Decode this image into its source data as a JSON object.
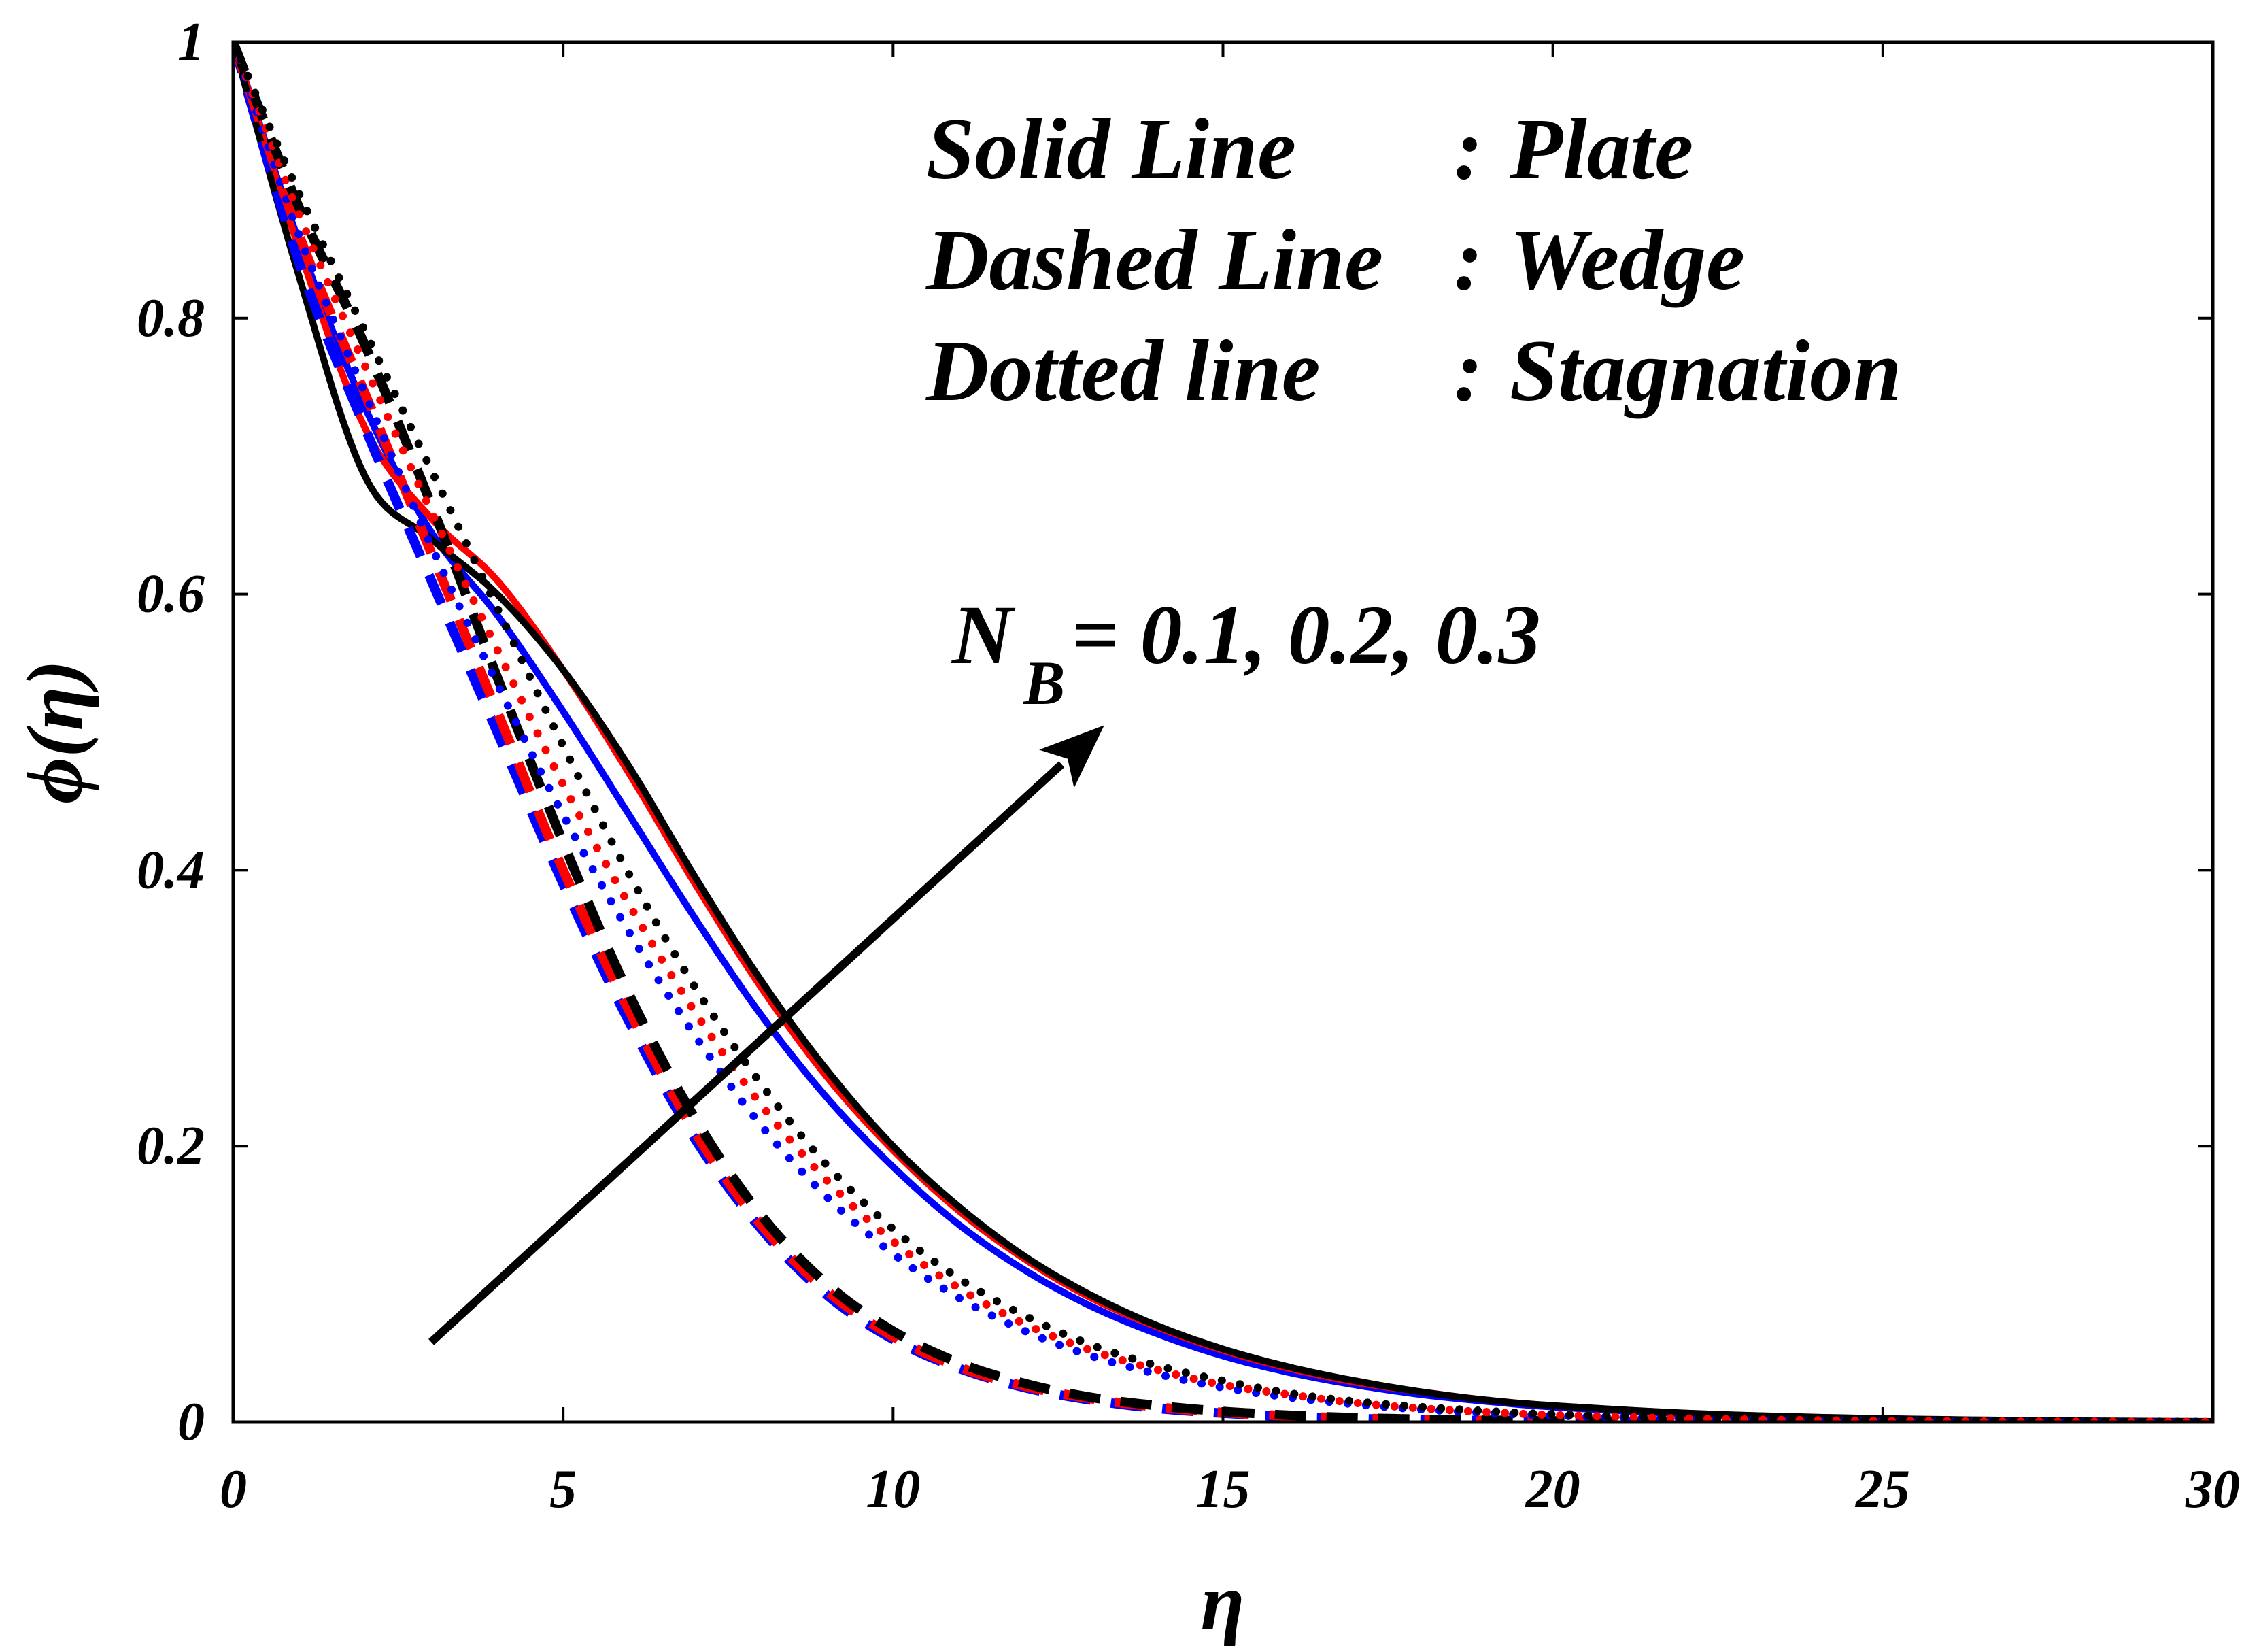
{
  "chart_data": {
    "type": "line",
    "title": "",
    "xlabel": "η",
    "ylabel": "ϕ(η)",
    "xlim": [
      0,
      30
    ],
    "ylim": [
      0,
      1
    ],
    "xticks": [
      0,
      5,
      10,
      15,
      20,
      25,
      30
    ],
    "yticks": [
      0,
      0.2,
      0.4,
      0.6,
      0.8,
      1
    ],
    "xtick_labels": [
      "0",
      "5",
      "10",
      "15",
      "20",
      "25",
      "30"
    ],
    "ytick_labels": [
      "0",
      "0.2",
      "0.4",
      "0.6",
      "0.8",
      "1"
    ],
    "grid": false,
    "legend_notes": [
      {
        "style": "Solid Line",
        "sep": ":",
        "geometry": "Plate"
      },
      {
        "style": "Dashed Line",
        "sep": ":",
        "geometry": "Wedge"
      },
      {
        "style": "Dotted line",
        "sep": ":",
        "geometry": "Stagnation"
      }
    ],
    "annotation": {
      "symbol": "N",
      "subscript": "B",
      "text": " = 0.1, 0.2, 0.3",
      "arrow_from": [
        3.0,
        0.058
      ],
      "arrow_to": [
        13.2,
        0.505
      ]
    },
    "colors": {
      "0.1": "#0000ff",
      "0.2": "#ff0000",
      "0.3": "#000000"
    },
    "series": [
      {
        "name": "Plate N_B=0.1",
        "geometry": "Plate",
        "N_B": 0.1,
        "style": "solid",
        "color": "#0000ff",
        "x": [
          0,
          1,
          2,
          3,
          4,
          5,
          6,
          7,
          8,
          9,
          10,
          11,
          12,
          13,
          14,
          15,
          16,
          17,
          18,
          19,
          20,
          22,
          24,
          26,
          28,
          30
        ],
        "y": [
          1.0,
          0.855,
          0.735,
          0.645,
          0.585,
          0.515,
          0.44,
          0.365,
          0.295,
          0.235,
          0.185,
          0.143,
          0.11,
          0.084,
          0.064,
          0.048,
          0.036,
          0.027,
          0.02,
          0.015,
          0.011,
          0.006,
          0.003,
          0.0015,
          0.0007,
          0.0003
        ]
      },
      {
        "name": "Plate N_B=0.2",
        "geometry": "Plate",
        "N_B": 0.2,
        "style": "solid",
        "color": "#ff0000",
        "x": [
          0,
          1,
          2,
          3,
          4,
          5,
          6,
          7,
          8,
          9,
          10,
          11,
          12,
          13,
          14,
          15,
          16,
          17,
          18,
          19,
          20,
          22,
          24,
          26,
          28,
          30
        ],
        "y": [
          1.0,
          0.85,
          0.72,
          0.655,
          0.61,
          0.545,
          0.47,
          0.39,
          0.315,
          0.25,
          0.197,
          0.153,
          0.118,
          0.09,
          0.069,
          0.052,
          0.039,
          0.029,
          0.022,
          0.016,
          0.012,
          0.0065,
          0.0035,
          0.0018,
          0.0009,
          0.0004
        ]
      },
      {
        "name": "Plate N_B=0.3",
        "geometry": "Plate",
        "N_B": 0.3,
        "style": "solid",
        "color": "#000000",
        "x": [
          0,
          1,
          2,
          3,
          4,
          5,
          6,
          7,
          8,
          9,
          10,
          11,
          12,
          13,
          14,
          15,
          16,
          17,
          18,
          19,
          20,
          22,
          24,
          26,
          28,
          30
        ],
        "y": [
          1.0,
          0.83,
          0.685,
          0.64,
          0.6,
          0.545,
          0.475,
          0.395,
          0.32,
          0.255,
          0.2,
          0.156,
          0.12,
          0.092,
          0.07,
          0.053,
          0.04,
          0.03,
          0.022,
          0.016,
          0.012,
          0.0066,
          0.0036,
          0.0019,
          0.001,
          0.0005
        ]
      },
      {
        "name": "Wedge N_B=0.1",
        "geometry": "Wedge",
        "N_B": 0.1,
        "style": "dashed",
        "color": "#0000ff",
        "x": [
          0,
          1,
          2,
          3,
          4,
          5,
          6,
          7,
          8,
          9,
          10,
          11,
          12,
          13,
          14,
          15,
          16,
          17,
          18,
          19,
          20,
          22,
          24
        ],
        "y": [
          1.0,
          0.84,
          0.72,
          0.61,
          0.5,
          0.39,
          0.29,
          0.205,
          0.14,
          0.092,
          0.06,
          0.039,
          0.025,
          0.016,
          0.01,
          0.0065,
          0.004,
          0.0026,
          0.0017,
          0.0011,
          0.0007,
          0.0003,
          0.0001
        ]
      },
      {
        "name": "Wedge N_B=0.2",
        "geometry": "Wedge",
        "N_B": 0.2,
        "style": "dashed",
        "color": "#ff0000",
        "x": [
          0,
          1,
          2,
          3,
          4,
          5,
          6,
          7,
          8,
          9,
          10,
          11,
          12,
          13,
          14,
          15,
          16,
          17,
          18,
          19,
          20,
          22,
          24
        ],
        "y": [
          1.0,
          0.86,
          0.745,
          0.63,
          0.515,
          0.4,
          0.298,
          0.21,
          0.143,
          0.095,
          0.062,
          0.04,
          0.026,
          0.017,
          0.011,
          0.007,
          0.0045,
          0.0029,
          0.0019,
          0.0012,
          0.0008,
          0.0003,
          0.0001
        ]
      },
      {
        "name": "Wedge N_B=0.3",
        "geometry": "Wedge",
        "N_B": 0.3,
        "style": "dashed",
        "color": "#000000",
        "x": [
          0,
          1,
          2,
          3,
          4,
          5,
          6,
          7,
          8,
          9,
          10,
          11,
          12,
          13,
          14,
          15,
          16,
          17,
          18,
          19,
          20,
          22,
          24
        ],
        "y": [
          1.0,
          0.88,
          0.78,
          0.665,
          0.54,
          0.42,
          0.31,
          0.22,
          0.15,
          0.1,
          0.066,
          0.043,
          0.028,
          0.018,
          0.012,
          0.0078,
          0.005,
          0.0032,
          0.0021,
          0.0014,
          0.0009,
          0.0004,
          0.0002
        ]
      },
      {
        "name": "Stagnation N_B=0.1",
        "geometry": "Stagnation",
        "N_B": 0.1,
        "style": "dotted",
        "color": "#0000ff",
        "x": [
          0,
          1,
          2,
          3,
          4,
          5,
          6,
          7,
          8,
          9,
          10,
          11,
          12,
          13,
          14,
          15,
          16,
          17,
          18,
          19,
          20,
          22,
          24,
          26,
          28,
          30
        ],
        "y": [
          1.0,
          0.86,
          0.745,
          0.635,
          0.535,
          0.44,
          0.355,
          0.28,
          0.215,
          0.163,
          0.122,
          0.09,
          0.066,
          0.048,
          0.035,
          0.025,
          0.018,
          0.013,
          0.0093,
          0.0067,
          0.0048,
          0.0025,
          0.0013,
          0.0007,
          0.0003,
          0.0002
        ]
      },
      {
        "name": "Stagnation N_B=0.2",
        "geometry": "Stagnation",
        "N_B": 0.2,
        "style": "dotted",
        "color": "#ff0000",
        "x": [
          0,
          1,
          2,
          3,
          4,
          5,
          6,
          7,
          8,
          9,
          10,
          11,
          12,
          13,
          14,
          15,
          16,
          17,
          18,
          19,
          20,
          22,
          24,
          26,
          28,
          30
        ],
        "y": [
          1.0,
          0.875,
          0.765,
          0.66,
          0.56,
          0.462,
          0.375,
          0.297,
          0.23,
          0.175,
          0.131,
          0.097,
          0.071,
          0.052,
          0.038,
          0.027,
          0.02,
          0.014,
          0.01,
          0.0073,
          0.0052,
          0.0027,
          0.0014,
          0.0007,
          0.0004,
          0.0002
        ]
      },
      {
        "name": "Stagnation N_B=0.3",
        "geometry": "Stagnation",
        "N_B": 0.3,
        "style": "dotted",
        "color": "#000000",
        "x": [
          0,
          1,
          2,
          3,
          4,
          5,
          6,
          7,
          8,
          9,
          10,
          11,
          12,
          13,
          14,
          15,
          16,
          17,
          18,
          19,
          20,
          22,
          24,
          26,
          28,
          30
        ],
        "y": [
          1.0,
          0.89,
          0.79,
          0.69,
          0.59,
          0.49,
          0.397,
          0.315,
          0.245,
          0.186,
          0.14,
          0.104,
          0.077,
          0.056,
          0.041,
          0.03,
          0.021,
          0.015,
          0.011,
          0.008,
          0.0057,
          0.003,
          0.0015,
          0.0008,
          0.0004,
          0.0002
        ]
      }
    ]
  }
}
